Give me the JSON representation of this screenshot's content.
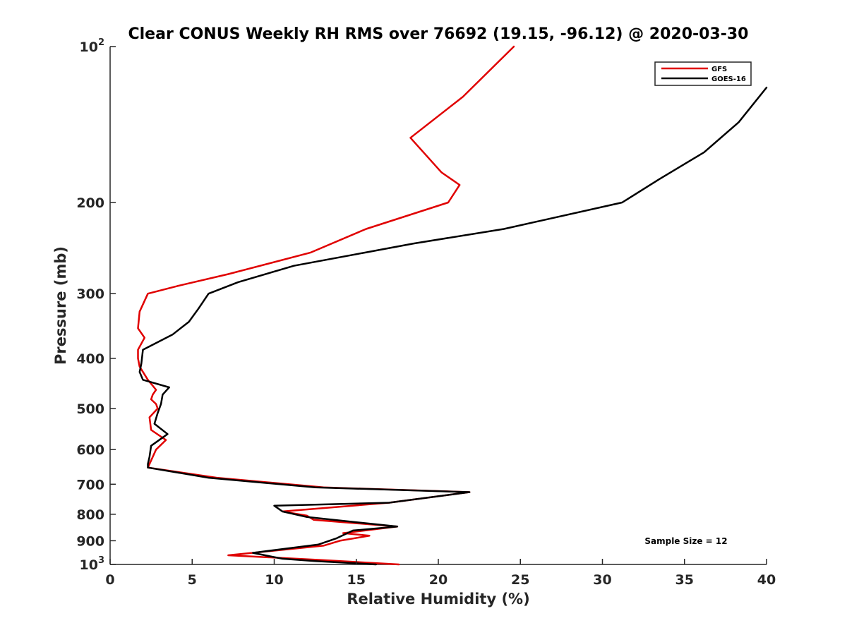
{
  "chart_data": {
    "type": "line",
    "title": "Clear CONUS Weekly RH RMS over 76692 (19.15, -96.12) @ 2020-03-30",
    "xlabel": "Relative Humidity (%)",
    "ylabel": "Pressure (mb)",
    "xlim": [
      0,
      40
    ],
    "ylim": [
      100,
      1000
    ],
    "y_scale": "log",
    "y_reversed": true,
    "grid": false,
    "legend_location": "top-right",
    "x_ticks": [
      "0",
      "5",
      "10",
      "15",
      "20",
      "25",
      "30",
      "35",
      "40"
    ],
    "x_tick_values": [
      0,
      5,
      10,
      15,
      20,
      25,
      30,
      35,
      40
    ],
    "y_ticks": [
      {
        "value": 100,
        "base": "10",
        "exp": "2"
      },
      {
        "value": 200,
        "label": "200"
      },
      {
        "value": 300,
        "label": "300"
      },
      {
        "value": 400,
        "label": "400"
      },
      {
        "value": 500,
        "label": "500"
      },
      {
        "value": 600,
        "label": "600"
      },
      {
        "value": 700,
        "label": "700"
      },
      {
        "value": 800,
        "label": "800"
      },
      {
        "value": 900,
        "label": "900"
      },
      {
        "value": 1000,
        "base": "10",
        "exp": "3"
      }
    ],
    "annotation": "Sample Size = 12",
    "series": [
      {
        "name": "GFS",
        "color": "#e00000",
        "points": [
          [
            24.6,
            100
          ],
          [
            21.5,
            125
          ],
          [
            18.3,
            150
          ],
          [
            20.2,
            175
          ],
          [
            21.3,
            185
          ],
          [
            20.6,
            200
          ],
          [
            15.6,
            225
          ],
          [
            12.2,
            250
          ],
          [
            7.2,
            275
          ],
          [
            4.1,
            290
          ],
          [
            2.3,
            300
          ],
          [
            1.8,
            325
          ],
          [
            1.7,
            350
          ],
          [
            2.1,
            365
          ],
          [
            1.7,
            385
          ],
          [
            1.7,
            400
          ],
          [
            1.8,
            415
          ],
          [
            2.3,
            440
          ],
          [
            2.8,
            460
          ],
          [
            2.6,
            470
          ],
          [
            2.5,
            480
          ],
          [
            2.8,
            490
          ],
          [
            2.9,
            500
          ],
          [
            2.4,
            520
          ],
          [
            2.5,
            550
          ],
          [
            3.4,
            575
          ],
          [
            2.8,
            600
          ],
          [
            2.6,
            620
          ],
          [
            2.4,
            640
          ],
          [
            2.3,
            650
          ],
          [
            6.5,
            680
          ],
          [
            13.0,
            710
          ],
          [
            21.9,
            725
          ],
          [
            17.0,
            760
          ],
          [
            10.5,
            790
          ],
          [
            12.0,
            805
          ],
          [
            12.4,
            820
          ],
          [
            17.5,
            845
          ],
          [
            14.2,
            870
          ],
          [
            15.8,
            880
          ],
          [
            14.0,
            900
          ],
          [
            13.0,
            920
          ],
          [
            7.2,
            960
          ],
          [
            12.8,
            980
          ],
          [
            17.6,
            1000
          ]
        ]
      },
      {
        "name": "GOES-16",
        "color": "#000000",
        "points": [
          [
            40.0,
            120
          ],
          [
            38.3,
            140
          ],
          [
            36.2,
            160
          ],
          [
            33.5,
            180
          ],
          [
            31.2,
            200
          ],
          [
            24.0,
            225
          ],
          [
            18.5,
            240
          ],
          [
            15.5,
            250
          ],
          [
            11.2,
            265
          ],
          [
            7.8,
            285
          ],
          [
            6.0,
            300
          ],
          [
            5.4,
            320
          ],
          [
            4.8,
            340
          ],
          [
            3.8,
            360
          ],
          [
            2.0,
            385
          ],
          [
            1.9,
            410
          ],
          [
            1.8,
            425
          ],
          [
            2.0,
            440
          ],
          [
            3.6,
            455
          ],
          [
            3.2,
            470
          ],
          [
            3.1,
            490
          ],
          [
            2.9,
            510
          ],
          [
            2.7,
            535
          ],
          [
            3.5,
            560
          ],
          [
            2.5,
            590
          ],
          [
            2.4,
            620
          ],
          [
            2.3,
            640
          ],
          [
            2.3,
            650
          ],
          [
            6.0,
            680
          ],
          [
            12.5,
            710
          ],
          [
            21.9,
            725
          ],
          [
            17.0,
            760
          ],
          [
            10.0,
            770
          ],
          [
            10.5,
            790
          ],
          [
            12.0,
            810
          ],
          [
            17.5,
            845
          ],
          [
            14.8,
            860
          ],
          [
            13.8,
            890
          ],
          [
            12.7,
            915
          ],
          [
            8.7,
            950
          ],
          [
            10.5,
            975
          ],
          [
            12.5,
            985
          ],
          [
            16.2,
            1000
          ]
        ]
      }
    ]
  }
}
